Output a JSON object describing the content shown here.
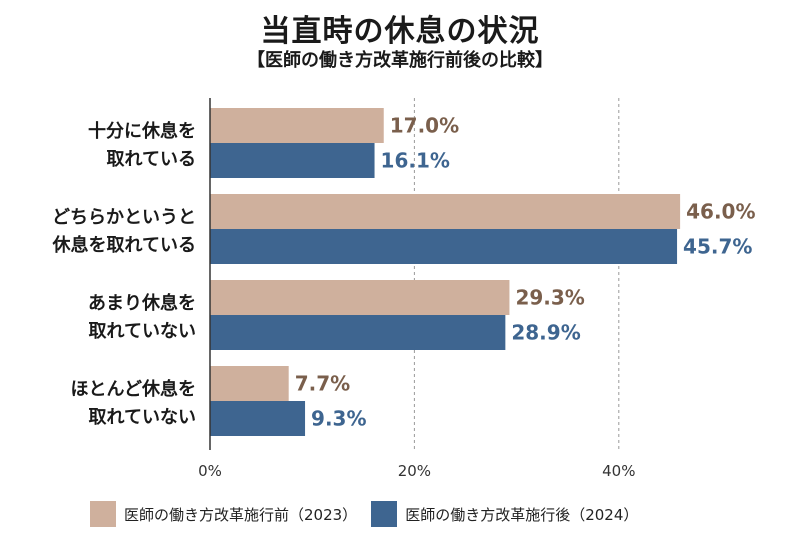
{
  "title": "当直時の休息の状況",
  "subtitle": "【医師の働き方改革施行前後の比較】",
  "chart_data": {
    "type": "bar",
    "orientation": "horizontal",
    "categories": [
      [
        "十分に休息を",
        "取れている"
      ],
      [
        "どちらかというと",
        "休息を取れている"
      ],
      [
        "あまり休息を",
        "取れていない"
      ],
      [
        "ほとんど休息を",
        "取れていない"
      ]
    ],
    "series": [
      {
        "name": "医師の働き方改革施行前（2023）",
        "color": "#cfb09d",
        "label_color": "#7a5f4c",
        "values": [
          17.0,
          46.0,
          29.3,
          7.7
        ],
        "labels": [
          "17.0%",
          "46.0%",
          "29.3%",
          "7.7%"
        ]
      },
      {
        "name": "医師の働き方改革施行後（2024）",
        "color": "#3e6590",
        "label_color": "#3e6590",
        "values": [
          16.1,
          45.7,
          28.9,
          9.3
        ],
        "labels": [
          "16.1%",
          "45.7%",
          "28.9%",
          "9.3%"
        ]
      }
    ],
    "xlim": [
      0,
      50
    ],
    "xticks": [
      0,
      20,
      40
    ],
    "xtick_labels": [
      "0%",
      "20%",
      "40%"
    ],
    "grid": "vertical-dashed",
    "legend": "bottom"
  }
}
